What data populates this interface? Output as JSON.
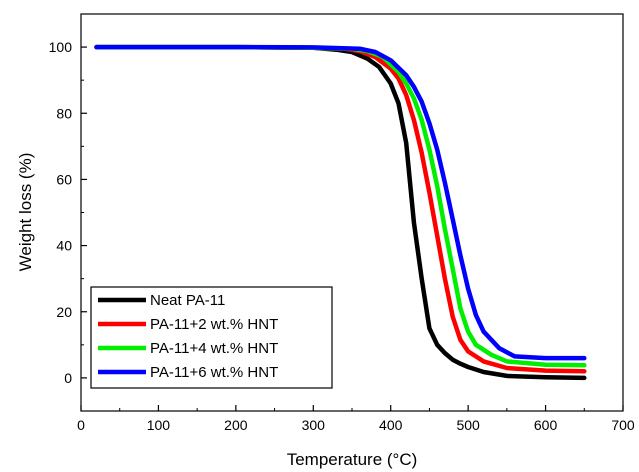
{
  "chart_data": {
    "type": "line",
    "title": "",
    "xlabel": "Temperature (°C)",
    "ylabel": "Weight loss (%)",
    "xlim": [
      0,
      700
    ],
    "ylim": [
      -10,
      110
    ],
    "xticks": [
      0,
      100,
      200,
      300,
      400,
      500,
      600,
      700
    ],
    "yticks": [
      0,
      20,
      40,
      60,
      80,
      100
    ],
    "grid": false,
    "legend_position": "bottom-left",
    "series": [
      {
        "name": "Neat PA-11",
        "color": "#000000",
        "x": [
          20,
          100,
          200,
          300,
          330,
          350,
          370,
          385,
          400,
          410,
          420,
          430,
          440,
          450,
          460,
          470,
          480,
          490,
          500,
          520,
          550,
          600,
          650
        ],
        "y": [
          100,
          100,
          100,
          99.8,
          99.2,
          98.5,
          96.5,
          94,
          89,
          83,
          71,
          47,
          30,
          15,
          10,
          7.5,
          5.5,
          4.3,
          3.3,
          1.8,
          0.6,
          0.2,
          0
        ]
      },
      {
        "name": "PA-11+2 wt.% HNT",
        "color": "#ff0000",
        "x": [
          20,
          100,
          200,
          300,
          340,
          360,
          380,
          400,
          410,
          420,
          430,
          440,
          450,
          460,
          470,
          480,
          490,
          500,
          520,
          550,
          600,
          650
        ],
        "y": [
          100,
          100,
          100,
          99.8,
          99.5,
          98.8,
          97,
          93.5,
          90.5,
          85.5,
          78,
          68,
          56,
          43,
          30,
          18.5,
          11.5,
          8,
          5,
          3,
          2.2,
          2
        ]
      },
      {
        "name": "PA-11+4 wt.% HNT",
        "color": "#00ee00",
        "x": [
          20,
          100,
          200,
          300,
          350,
          370,
          390,
          410,
          420,
          430,
          440,
          450,
          460,
          470,
          480,
          490,
          500,
          510,
          530,
          550,
          600,
          650
        ],
        "y": [
          100,
          100,
          100,
          99.8,
          99.5,
          98.8,
          97,
          92.5,
          89,
          84.5,
          78,
          69,
          58,
          45,
          33,
          21,
          14,
          10,
          7,
          5,
          4,
          3.8
        ]
      },
      {
        "name": "PA-11+6 wt.% HNT",
        "color": "#0000ff",
        "x": [
          20,
          100,
          200,
          300,
          360,
          380,
          400,
          420,
          430,
          440,
          450,
          460,
          470,
          480,
          490,
          500,
          510,
          520,
          540,
          560,
          600,
          650
        ],
        "y": [
          100,
          100,
          100,
          99.9,
          99.5,
          98.5,
          96,
          91.5,
          88,
          83.5,
          77,
          69,
          59,
          48,
          37,
          27,
          19,
          14,
          9,
          6.5,
          6,
          6
        ]
      }
    ]
  }
}
